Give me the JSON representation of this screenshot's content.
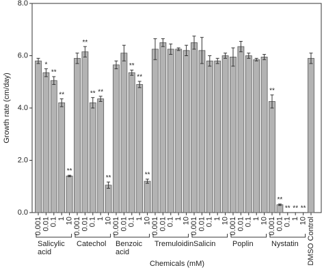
{
  "chart_data": {
    "type": "bar",
    "x_label": "Chemicals (mM)",
    "y_label": "Growth rate (cm/day)",
    "color": "#b3b3b3",
    "ylim": [
      0,
      8
    ],
    "yticks": [
      {
        "value": 0,
        "label": "0.0"
      },
      {
        "value": 2,
        "label": "2.0"
      },
      {
        "value": 4,
        "label": "4.0"
      },
      {
        "value": 6,
        "label": "6.0"
      },
      {
        "value": 8,
        "label": "8.0"
      }
    ],
    "groups": [
      {
        "name": "Salicylic acid",
        "categories": [
          "0.001",
          "0.01",
          "0.1",
          "1",
          "10"
        ],
        "values": [
          5.8,
          5.35,
          5.05,
          4.2,
          1.4
        ],
        "errors": [
          0.1,
          0.15,
          0.15,
          0.15,
          0.03
        ],
        "annotations": [
          null,
          "*",
          "**",
          "**",
          "**"
        ]
      },
      {
        "name": "Catechol",
        "categories": [
          "0.001",
          "0.01",
          "0.1",
          "1",
          "10"
        ],
        "values": [
          5.9,
          6.15,
          4.2,
          4.35,
          1.05
        ],
        "errors": [
          0.2,
          0.2,
          0.2,
          0.1,
          0.12
        ],
        "annotations": [
          null,
          "**",
          "**",
          "**",
          "**"
        ]
      },
      {
        "name": "Benzoic acid",
        "categories": [
          "0.001",
          "0.01",
          "0.1",
          "1",
          "10"
        ],
        "values": [
          5.65,
          6.1,
          5.35,
          4.9,
          1.2
        ],
        "errors": [
          0.15,
          0.3,
          0.1,
          0.12,
          0.08
        ],
        "annotations": [
          null,
          null,
          "**",
          "**",
          "**"
        ]
      },
      {
        "name": "Tremuloidin",
        "categories": [
          "0.001",
          "0.01",
          "0.1",
          "1",
          "10"
        ],
        "values": [
          6.25,
          6.5,
          6.25,
          6.25,
          6.2
        ],
        "errors": [
          0.4,
          0.15,
          0.2,
          0.05,
          0.2
        ],
        "annotations": [
          null,
          null,
          null,
          null,
          null
        ]
      },
      {
        "name": "Salicin",
        "categories": [
          "0.001",
          "0.01",
          "0.1",
          "1",
          "10"
        ],
        "values": [
          6.5,
          6.2,
          5.8,
          5.8,
          6.0
        ],
        "errors": [
          0.25,
          0.5,
          0.2,
          0.1,
          0.1
        ],
        "annotations": [
          null,
          null,
          null,
          null,
          null
        ]
      },
      {
        "name": "Poplin",
        "categories": [
          "0.001",
          "0.01",
          "0.1",
          "1",
          "10"
        ],
        "values": [
          5.95,
          6.35,
          6.0,
          5.85,
          5.95
        ],
        "errors": [
          0.35,
          0.2,
          0.1,
          0.05,
          0.1
        ],
        "annotations": [
          null,
          null,
          null,
          null,
          null
        ]
      },
      {
        "name": "Nystatin",
        "categories": [
          "0.001",
          "0.01",
          "0.1",
          "1",
          "10"
        ],
        "values": [
          4.25,
          0.3,
          0,
          0,
          0
        ],
        "errors": [
          0.25,
          0.03,
          0,
          0,
          0
        ],
        "annotations": [
          "**",
          "**",
          "**",
          "**",
          "**"
        ]
      },
      {
        "categories": [
          "DMSO Control"
        ],
        "values": [
          5.9
        ],
        "errors": [
          0.2
        ],
        "annotations": [
          null
        ]
      }
    ]
  }
}
